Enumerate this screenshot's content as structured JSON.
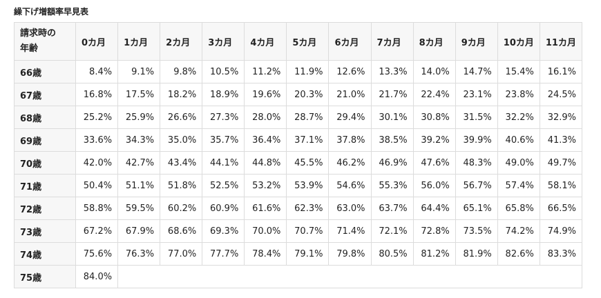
{
  "title": "繰下げ増額率早見表",
  "table": {
    "corner": [
      "請求時の",
      "年齢"
    ],
    "columns": [
      "0カ月",
      "1カ月",
      "2カ月",
      "3カ月",
      "4カ月",
      "5カ月",
      "6カ月",
      "7カ月",
      "8カ月",
      "9カ月",
      "10カ月",
      "11カ月"
    ],
    "rows": [
      {
        "label": "66歳",
        "cells": [
          "8.4%",
          "9.1%",
          "9.8%",
          "10.5%",
          "11.2%",
          "11.9%",
          "12.6%",
          "13.3%",
          "14.0%",
          "14.7%",
          "15.4%",
          "16.1%"
        ]
      },
      {
        "label": "67歳",
        "cells": [
          "16.8%",
          "17.5%",
          "18.2%",
          "18.9%",
          "19.6%",
          "20.3%",
          "21.0%",
          "21.7%",
          "22.4%",
          "23.1%",
          "23.8%",
          "24.5%"
        ]
      },
      {
        "label": "68歳",
        "cells": [
          "25.2%",
          "25.9%",
          "26.6%",
          "27.3%",
          "28.0%",
          "28.7%",
          "29.4%",
          "30.1%",
          "30.8%",
          "31.5%",
          "32.2%",
          "32.9%"
        ]
      },
      {
        "label": "69歳",
        "cells": [
          "33.6%",
          "34.3%",
          "35.0%",
          "35.7%",
          "36.4%",
          "37.1%",
          "37.8%",
          "38.5%",
          "39.2%",
          "39.9%",
          "40.6%",
          "41.3%"
        ]
      },
      {
        "label": "70歳",
        "cells": [
          "42.0%",
          "42.7%",
          "43.4%",
          "44.1%",
          "44.8%",
          "45.5%",
          "46.2%",
          "46.9%",
          "47.6%",
          "48.3%",
          "49.0%",
          "49.7%"
        ]
      },
      {
        "label": "71歳",
        "cells": [
          "50.4%",
          "51.1%",
          "51.8%",
          "52.5%",
          "53.2%",
          "53.9%",
          "54.6%",
          "55.3%",
          "56.0%",
          "56.7%",
          "57.4%",
          "58.1%"
        ]
      },
      {
        "label": "72歳",
        "cells": [
          "58.8%",
          "59.5%",
          "60.2%",
          "60.9%",
          "61.6%",
          "62.3%",
          "63.0%",
          "63.7%",
          "64.4%",
          "65.1%",
          "65.8%",
          "66.5%"
        ]
      },
      {
        "label": "73歳",
        "cells": [
          "67.2%",
          "67.9%",
          "68.6%",
          "69.3%",
          "70.0%",
          "70.7%",
          "71.4%",
          "72.1%",
          "72.8%",
          "73.5%",
          "74.2%",
          "74.9%"
        ]
      },
      {
        "label": "74歳",
        "cells": [
          "75.6%",
          "76.3%",
          "77.0%",
          "77.7%",
          "78.4%",
          "79.1%",
          "79.8%",
          "80.5%",
          "81.2%",
          "81.9%",
          "82.6%",
          "83.3%"
        ]
      },
      {
        "label": "75歳",
        "cells": [
          "84.0%"
        ]
      }
    ]
  }
}
